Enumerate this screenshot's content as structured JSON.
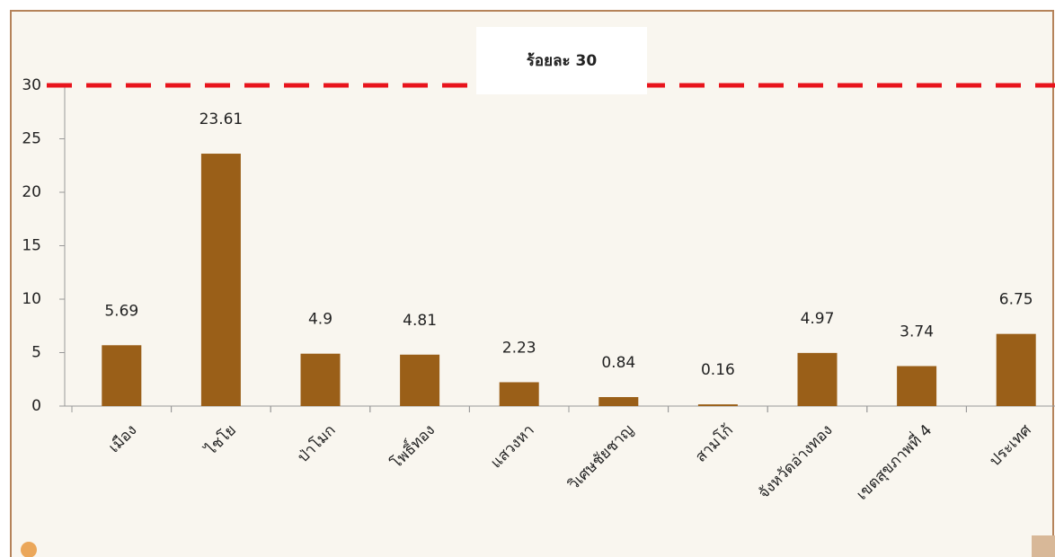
{
  "chart_data": {
    "type": "bar",
    "categories": [
      "เมือง",
      "ไชโย",
      "ป่าโมก",
      "โพธิ์ทอง",
      "แสวงหา",
      "วิเศษชัยชาญ",
      "สามโก้",
      "จังหวัดอ่างทอง",
      "เขตสุขภาพที่ 4",
      "ประเทศ"
    ],
    "values": [
      5.69,
      23.61,
      4.9,
      4.81,
      2.23,
      0.84,
      0.16,
      4.97,
      3.74,
      6.75
    ],
    "color": "#9a5f18",
    "ylim": [
      0,
      30
    ],
    "yticks": [
      0,
      5,
      10,
      15,
      20,
      25,
      30
    ],
    "grid": false,
    "reference_line": {
      "value": 30,
      "label": "ร้อยละ 30",
      "color": "#e8141c"
    }
  }
}
